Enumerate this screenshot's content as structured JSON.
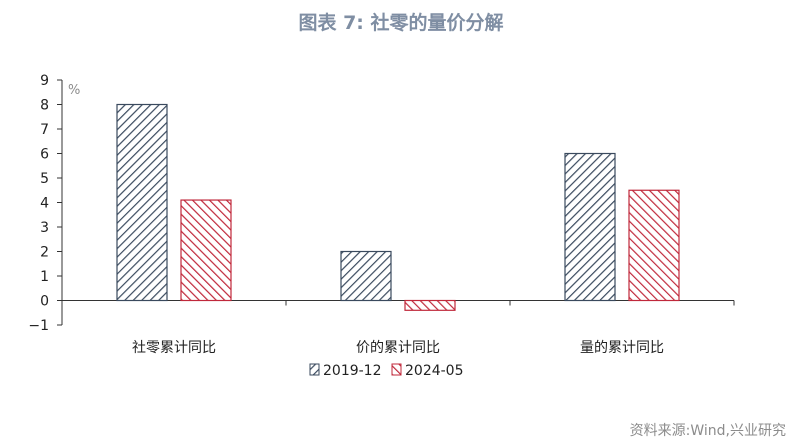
{
  "title": "图表 7:  社零的量价分解",
  "source": "资料来源:Wind,兴业研究",
  "chart_data": {
    "type": "bar",
    "categories": [
      "社零累计同比",
      "价的累计同比",
      "量的累计同比"
    ],
    "series": [
      {
        "name": "2019-12",
        "values": [
          8.0,
          2.0,
          6.0
        ]
      },
      {
        "name": "2024-05",
        "values": [
          4.1,
          -0.4,
          4.5
        ]
      }
    ],
    "ylabel": "%",
    "ylim": [
      -1,
      9
    ],
    "yticks": [
      -1,
      0,
      1,
      2,
      3,
      4,
      5,
      6,
      7,
      8,
      9
    ],
    "grid": false,
    "legend": "bottom",
    "colors": [
      "#3a4a5e",
      "#c0283b"
    ]
  }
}
